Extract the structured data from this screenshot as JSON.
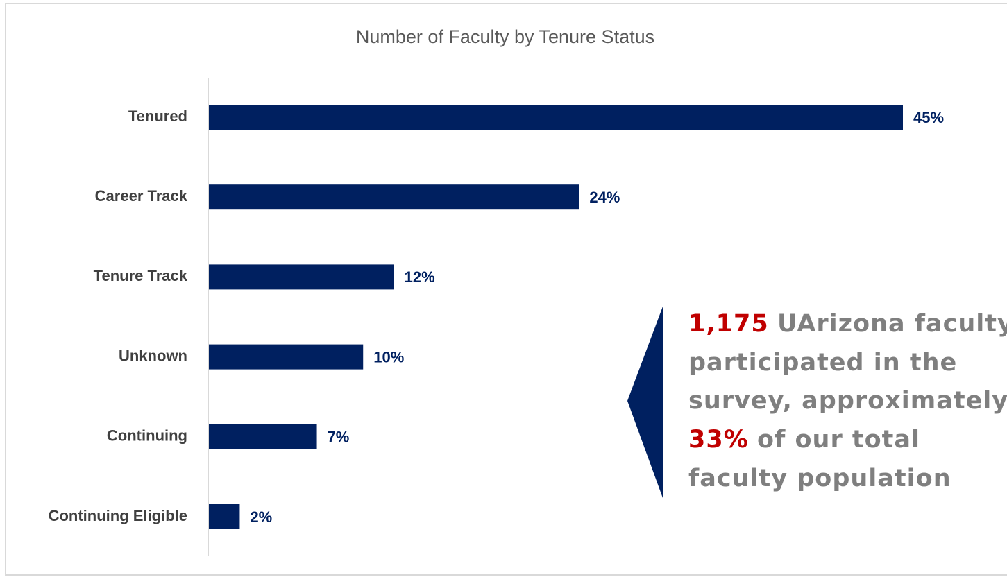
{
  "chart_data": {
    "type": "bar",
    "orientation": "horizontal",
    "title": "Number of Faculty by Tenure Status",
    "categories": [
      "Tenured",
      "Career Track",
      "Tenure Track",
      "Unknown",
      "Continuing",
      "Continuing Eligible"
    ],
    "values": [
      45,
      24,
      12,
      10,
      7,
      2
    ],
    "value_labels": [
      "45%",
      "24%",
      "12%",
      "10%",
      "7%",
      "2%"
    ],
    "color": "#002060",
    "annotation": {
      "lines": [
        [
          {
            "text": "1,175",
            "highlight": true
          },
          {
            "text": "UArizona faculty"
          }
        ],
        [
          {
            "text": "participated in the"
          }
        ],
        [
          {
            "text": "survey, approximately"
          }
        ],
        [
          {
            "text": "33%",
            "highlight": true
          },
          {
            "text": "of our total"
          }
        ],
        [
          {
            "text": "faculty population"
          }
        ]
      ]
    }
  }
}
